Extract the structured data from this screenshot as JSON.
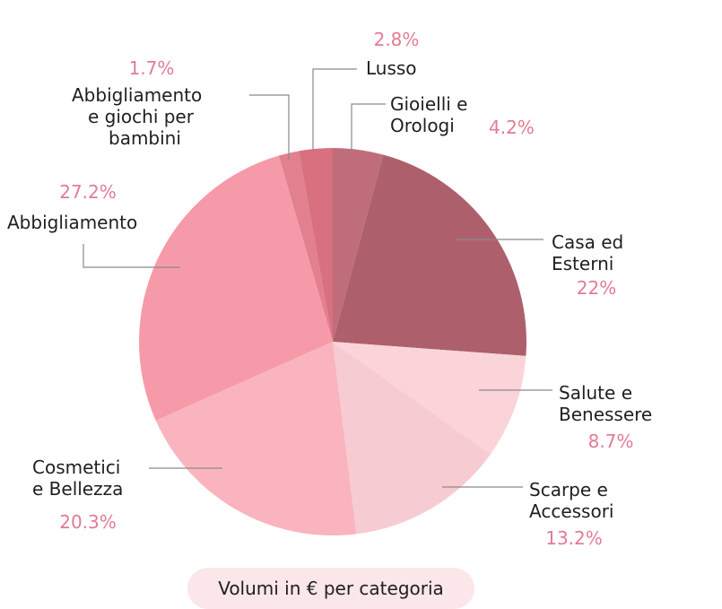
{
  "chart_data": {
    "type": "pie",
    "title": "",
    "slices": [
      {
        "label": [
          "Gioielli e",
          "Orologi"
        ],
        "value": 4.2,
        "value_label": "4.2%",
        "color": "#c06d7b"
      },
      {
        "label": [
          "Casa ed",
          "Esterni"
        ],
        "value": 22,
        "value_label": "22%",
        "color": "#ad606c"
      },
      {
        "label": [
          "Salute e",
          "Benessere"
        ],
        "value": 8.7,
        "value_label": "8.7%",
        "color": "#fbd4da"
      },
      {
        "label": [
          "Scarpe e",
          "Accessori"
        ],
        "value": 13.2,
        "value_label": "13.2%",
        "color": "#f6ccd2"
      },
      {
        "label": [
          "Cosmetici",
          "e Bellezza"
        ],
        "value": 20.3,
        "value_label": "20.3%",
        "color": "#fab4bf"
      },
      {
        "label": [
          "Abbigliamento"
        ],
        "value": 27.2,
        "value_label": "27.2%",
        "color": "#f69aaa"
      },
      {
        "label": [
          "Abbigliamento",
          "e giochi per",
          "bambini"
        ],
        "value": 1.7,
        "value_label": "1.7%",
        "color": "#e2808f"
      },
      {
        "label": [
          "Lusso"
        ],
        "value": 2.8,
        "value_label": "2.8%",
        "color": "#d8707f"
      }
    ]
  },
  "caption": "Volumi in € per categoria"
}
